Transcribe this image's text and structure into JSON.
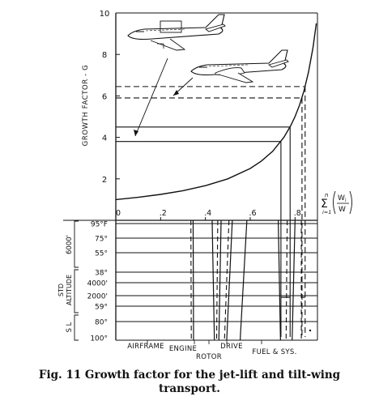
{
  "caption": {
    "line1": "Fig. 11  Growth factor for the jet-lift and tilt-wing",
    "line2": "transport."
  },
  "chart_data": {
    "type": "line",
    "ylabel": "GROWTH FACTOR - G",
    "ylim": [
      0,
      10
    ],
    "yticks": [
      "0",
      "2",
      "4",
      "6",
      "8",
      "10"
    ],
    "xlim": [
      0,
      0.9
    ],
    "xticks": [
      "0",
      ".2",
      ".4",
      ".6",
      ".8"
    ],
    "xlabel_formula": {
      "sum": "Σ",
      "upper": "n",
      "lower": "i=1",
      "num": "W",
      "num_sub": "i",
      "den": "W"
    },
    "growth_curve": {
      "x": [
        0,
        0.1,
        0.2,
        0.3,
        0.4,
        0.5,
        0.6,
        0.65,
        0.7,
        0.75,
        0.78,
        0.8,
        0.82,
        0.84,
        0.86,
        0.88,
        0.895
      ],
      "y": [
        1.0,
        1.11,
        1.25,
        1.43,
        1.67,
        2.0,
        2.5,
        2.86,
        3.33,
        4.0,
        4.55,
        5.0,
        5.56,
        6.25,
        7.14,
        8.33,
        9.5
      ]
    },
    "guides": [
      {
        "style": "solid",
        "G": 3.8,
        "x": 0.737
      },
      {
        "style": "solid",
        "G": 4.5,
        "x": 0.778
      },
      {
        "style": "dashed",
        "G": 5.9,
        "x": 0.831
      },
      {
        "style": "dashed",
        "G": 6.45,
        "x": 0.845
      }
    ],
    "lower_panel": {
      "rows": [
        "95°F",
        "75°",
        "55°",
        "38°",
        "4000'",
        "2000'",
        "59°",
        "80°",
        "100°"
      ],
      "groups": [
        "6000'",
        "STD ALTITUDE",
        "S L"
      ],
      "columns": [
        "AIRFRAME",
        "ENGINE",
        "ROTOR",
        "DRIVE",
        "FUEL & SYS."
      ],
      "solid_lines": [
        {
          "x": [
            0.345,
            0.347
          ]
        },
        {
          "x": [
            0.43,
            0.44
          ]
        },
        {
          "x": [
            0.47,
            0.46
          ]
        },
        {
          "x": [
            0.52,
            0.495
          ]
        },
        {
          "x": [
            0.585,
            0.555
          ]
        },
        {
          "x": [
            0.725,
            0.735
          ]
        },
        {
          "x": [
            0.8,
            0.787
          ]
        }
      ],
      "dashed_lines": [
        {
          "x": [
            0.335,
            0.337
          ]
        },
        {
          "x": [
            0.455,
            0.45
          ]
        },
        {
          "x": [
            0.505,
            0.485
          ]
        },
        {
          "x": [
            0.765,
            0.76
          ]
        },
        {
          "x": [
            0.828,
            0.828
          ]
        }
      ]
    }
  }
}
